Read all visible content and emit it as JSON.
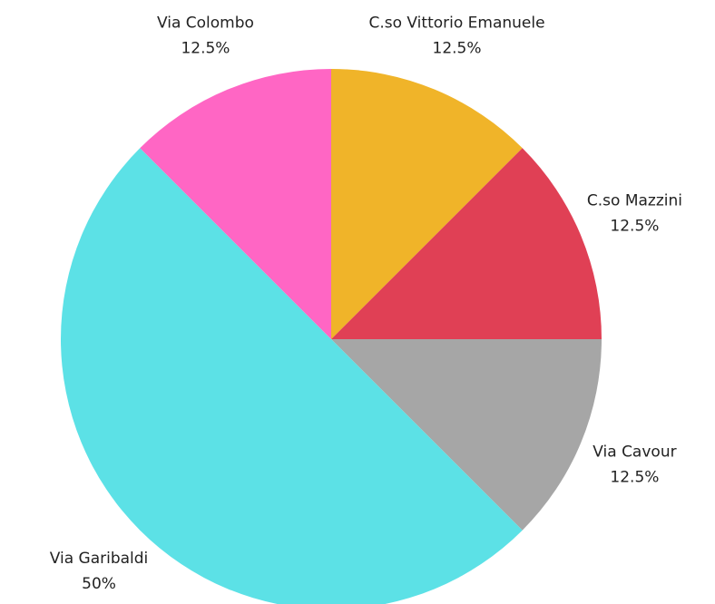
{
  "chart_data": {
    "type": "pie",
    "categories": [
      "C.so Vittorio Emanuele",
      "C.so Mazzini",
      "Via Cavour",
      "Via Garibaldi",
      "Via Colombo"
    ],
    "values": [
      12.5,
      12.5,
      12.5,
      50,
      12.5
    ],
    "value_labels": [
      "12.5%",
      "12.5%",
      "12.5%",
      "50%",
      "12.5%"
    ],
    "colors": [
      "#f0b429",
      "#e04055",
      "#a6a6a6",
      "#5ce1e6",
      "#ff66c4"
    ]
  }
}
